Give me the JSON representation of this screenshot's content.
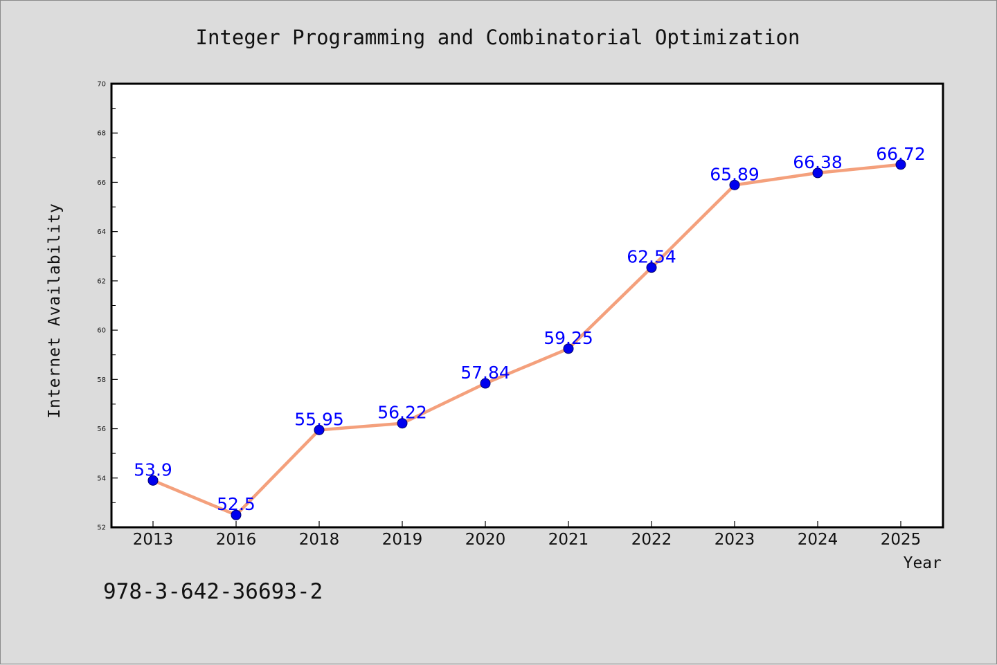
{
  "chart_data": {
    "type": "line",
    "title": "Integer Programming and Combinatorial Optimization",
    "xlabel": "Year",
    "ylabel": "Internet Availability",
    "categories": [
      "2013",
      "2016",
      "2018",
      "2019",
      "2020",
      "2021",
      "2022",
      "2023",
      "2024",
      "2025"
    ],
    "series": [
      {
        "values": [
          53.9,
          52.5,
          55.95,
          56.22,
          57.84,
          59.25,
          62.54,
          65.89,
          66.38,
          66.72
        ],
        "labels": [
          "53.9",
          "52.5",
          "55.95",
          "56.22",
          "57.84",
          "59.25",
          "62.54",
          "65.89",
          "66.38",
          "66.72"
        ],
        "line_color": "#f4a07c",
        "marker_color": "#0000ee",
        "label_color": "#0000ff"
      }
    ],
    "ylim": [
      52,
      70
    ],
    "yticks": [
      "52",
      "54",
      "56",
      "58",
      "60",
      "62",
      "64",
      "66",
      "68",
      "70"
    ],
    "grid": false,
    "legend": "none"
  },
  "footer": {
    "isbn": "978-3-642-36693-2"
  }
}
